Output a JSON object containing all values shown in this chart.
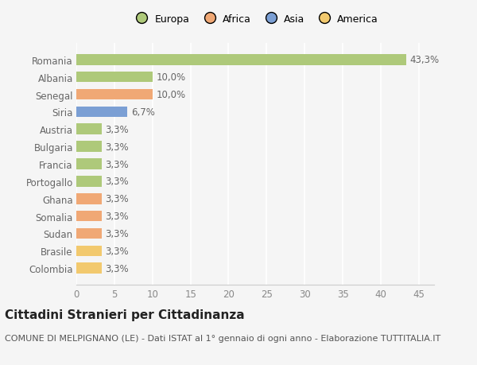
{
  "categories": [
    "Colombia",
    "Brasile",
    "Sudan",
    "Somalia",
    "Ghana",
    "Portogallo",
    "Francia",
    "Bulgaria",
    "Austria",
    "Siria",
    "Senegal",
    "Albania",
    "Romania"
  ],
  "values": [
    3.3,
    3.3,
    3.3,
    3.3,
    3.3,
    3.3,
    3.3,
    3.3,
    3.3,
    6.7,
    10.0,
    10.0,
    43.3
  ],
  "labels": [
    "3,3%",
    "3,3%",
    "3,3%",
    "3,3%",
    "3,3%",
    "3,3%",
    "3,3%",
    "3,3%",
    "3,3%",
    "6,7%",
    "10,0%",
    "10,0%",
    "43,3%"
  ],
  "colors": [
    "#f2c96e",
    "#f2c96e",
    "#f0a875",
    "#f0a875",
    "#f0a875",
    "#aec97a",
    "#aec97a",
    "#aec97a",
    "#aec97a",
    "#7b9fd4",
    "#f0a875",
    "#aec97a",
    "#aec97a"
  ],
  "legend_labels": [
    "Europa",
    "Africa",
    "Asia",
    "America"
  ],
  "legend_colors": [
    "#aec97a",
    "#f0a875",
    "#7b9fd4",
    "#f2c96e"
  ],
  "title": "Cittadini Stranieri per Cittadinanza",
  "subtitle": "COMUNE DI MELPIGNANO (LE) - Dati ISTAT al 1° gennaio di ogni anno - Elaborazione TUTTITALIA.IT",
  "xlim": [
    0,
    47
  ],
  "xticks": [
    0,
    5,
    10,
    15,
    20,
    25,
    30,
    35,
    40,
    45
  ],
  "background_color": "#f5f5f5",
  "grid_color": "#ffffff",
  "bar_height": 0.62,
  "label_fontsize": 8.5,
  "title_fontsize": 11,
  "subtitle_fontsize": 8,
  "tick_fontsize": 8.5,
  "legend_fontsize": 9,
  "ylabel_color": "#666666",
  "xlabel_color": "#888888"
}
